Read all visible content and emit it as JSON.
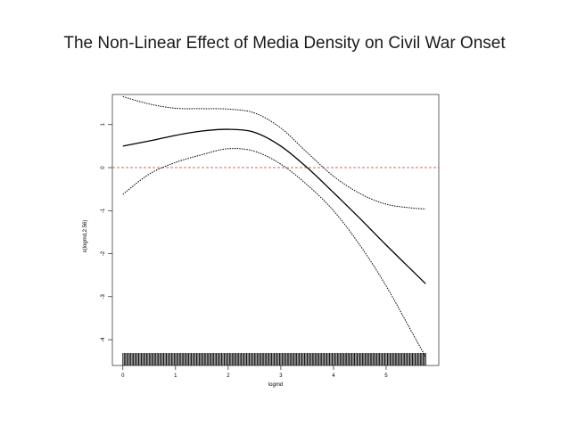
{
  "slide": {
    "title": "The Non-Linear Effect of Media Density on Civil War Onset"
  },
  "chart_data": {
    "type": "line",
    "title": "The Non-Linear Effect of Media Density on Civil War Onset",
    "xlabel": "logmd",
    "ylabel": "s(logmd,2.56)",
    "xlim": [
      -0.2,
      6.0
    ],
    "ylim": [
      -4.6,
      1.7
    ],
    "xticks": [
      0,
      1,
      2,
      3,
      4,
      5
    ],
    "yticks": [
      -4,
      -3,
      -2,
      -1,
      0,
      1
    ],
    "grid": false,
    "legend": "none",
    "reference_line": {
      "y": 0,
      "color": "#cc3333",
      "style": "dashed"
    },
    "rug": {
      "from": 0.0,
      "to": 5.75,
      "marks_per_unit": 40
    },
    "series": [
      {
        "role": "fit",
        "style": "solid",
        "x": [
          0.0,
          0.5,
          1.0,
          1.5,
          2.0,
          2.5,
          3.0,
          3.5,
          4.0,
          4.5,
          5.0,
          5.5,
          5.75
        ],
        "y": [
          0.5,
          0.62,
          0.75,
          0.85,
          0.89,
          0.82,
          0.5,
          0.0,
          -0.58,
          -1.18,
          -1.8,
          -2.4,
          -2.7
        ]
      },
      {
        "role": "upper",
        "style": "dotted",
        "x": [
          0.0,
          0.5,
          1.0,
          1.5,
          2.0,
          2.5,
          3.0,
          3.5,
          4.0,
          4.5,
          5.0,
          5.5,
          5.75
        ],
        "y": [
          1.65,
          1.48,
          1.38,
          1.37,
          1.36,
          1.27,
          0.92,
          0.35,
          -0.2,
          -0.6,
          -0.85,
          -0.94,
          -0.96
        ]
      },
      {
        "role": "lower",
        "style": "dotted",
        "x": [
          0.0,
          0.5,
          1.0,
          1.5,
          2.0,
          2.5,
          3.0,
          3.5,
          4.0,
          4.5,
          5.0,
          5.5,
          5.75
        ],
        "y": [
          -0.62,
          -0.15,
          0.12,
          0.3,
          0.44,
          0.38,
          0.08,
          -0.4,
          -1.0,
          -1.8,
          -2.75,
          -3.85,
          -4.4
        ]
      }
    ]
  }
}
